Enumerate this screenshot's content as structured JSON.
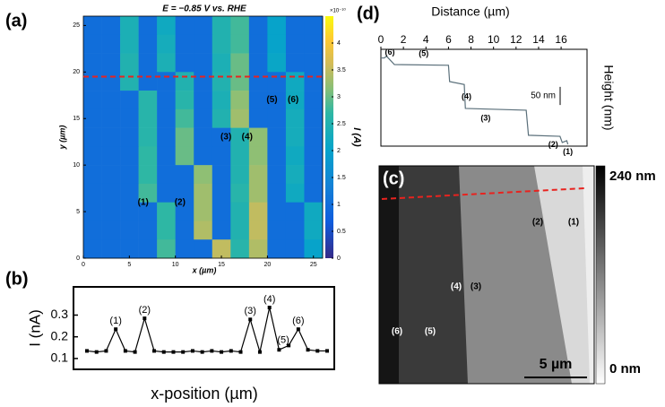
{
  "chart_data": [
    {
      "type": "heatmap",
      "panel": "(a)",
      "title": "E = −0.85 V vs. RHE",
      "xlabel": "x (µm)",
      "ylabel": "y (µm)",
      "colorbar_label": "I (A)",
      "colorbar_exponent": "×10⁻¹⁰",
      "xlim": [
        0,
        26
      ],
      "ylim": [
        0,
        26
      ],
      "xticks": [
        0,
        5,
        10,
        15,
        20,
        25
      ],
      "yticks": [
        0,
        5,
        10,
        15,
        20,
        25
      ],
      "clim": [
        0,
        4.5
      ],
      "cticks": [
        0,
        0.5,
        1,
        1.5,
        2,
        2.5,
        3,
        3.5,
        4
      ],
      "cut_line_y": 19.5,
      "matrix": [
        [
          1,
          1,
          2.4,
          1,
          2.2,
          1,
          1,
          2.5,
          2.8,
          1,
          2.0,
          1,
          1
        ],
        [
          1,
          1,
          2.4,
          1,
          2.3,
          1,
          1,
          2.5,
          2.8,
          1,
          2.0,
          1,
          1
        ],
        [
          1,
          1,
          2.5,
          1,
          2.4,
          1,
          1,
          2.4,
          3.0,
          1,
          2.1,
          1,
          1
        ],
        [
          1,
          1,
          2.5,
          1,
          1,
          2.5,
          1,
          2.5,
          3.0,
          1,
          1,
          2.2,
          1
        ],
        [
          1,
          1,
          1,
          2.6,
          1,
          2.6,
          1,
          2.4,
          3.2,
          1,
          1,
          2.2,
          1
        ],
        [
          1,
          1,
          1,
          2.6,
          1,
          2.8,
          1,
          2.5,
          3.3,
          1,
          1,
          2.3,
          1
        ],
        [
          1,
          1,
          1,
          2.6,
          1,
          3.0,
          1,
          1,
          2.5,
          3.2,
          1,
          2.3,
          1
        ],
        [
          1,
          1,
          1,
          2.7,
          1,
          3.0,
          1,
          1,
          2.5,
          3.2,
          1,
          2.2,
          1
        ],
        [
          1,
          1,
          1,
          2.7,
          1,
          1,
          3.2,
          1,
          2.5,
          3.3,
          1,
          2.3,
          1
        ],
        [
          1,
          1,
          1,
          2.8,
          1,
          1,
          3.3,
          1,
          2.6,
          3.3,
          1,
          2.2,
          1
        ],
        [
          1,
          1,
          1,
          1,
          2.7,
          1,
          3.3,
          1,
          2.5,
          3.5,
          1,
          1,
          2.2
        ],
        [
          1,
          1,
          1,
          1,
          2.7,
          1,
          3.4,
          1,
          2.5,
          3.5,
          1,
          1,
          2.2
        ],
        [
          1,
          1,
          1,
          1,
          2.8,
          1,
          1,
          3.5,
          2.6,
          3.4,
          1,
          1,
          2.0
        ]
      ],
      "annotations": [
        {
          "text": "(1)",
          "x": 6.5,
          "y": 6
        },
        {
          "text": "(2)",
          "x": 10.5,
          "y": 6
        },
        {
          "text": "(3)",
          "x": 15.5,
          "y": 13
        },
        {
          "text": "(4)",
          "x": 17.8,
          "y": 13
        },
        {
          "text": "(5)",
          "x": 20.5,
          "y": 17
        },
        {
          "text": "(6)",
          "x": 22.8,
          "y": 17
        }
      ]
    },
    {
      "type": "line",
      "panel": "(b)",
      "xlabel": "x-position (µm)",
      "ylabel": "I (nA)",
      "ylim": [
        0.05,
        0.43
      ],
      "yticks": [
        0.1,
        0.2,
        0.3
      ],
      "categories": [
        null,
        null,
        null,
        null,
        null,
        null,
        null,
        null,
        null,
        null,
        null,
        null,
        null,
        null,
        null,
        null,
        null,
        null,
        null,
        null,
        null,
        null,
        null,
        null,
        null,
        null
      ],
      "values": [
        0.135,
        0.13,
        0.135,
        0.235,
        0.135,
        0.13,
        0.285,
        0.135,
        0.13,
        0.13,
        0.13,
        0.135,
        0.13,
        0.135,
        0.13,
        0.135,
        0.13,
        0.28,
        0.13,
        0.335,
        0.14,
        0.16,
        0.235,
        0.14,
        0.135,
        0.135
      ],
      "point_labels": [
        null,
        null,
        null,
        "(1)",
        null,
        null,
        "(2)",
        null,
        null,
        null,
        null,
        null,
        null,
        null,
        null,
        null,
        null,
        "(3)",
        null,
        "(4)",
        null,
        "(5)",
        "(6)",
        null,
        null,
        null
      ]
    },
    {
      "type": "profile",
      "panel": "(d)",
      "xlabel": "Distance (µm)",
      "ylabel": "Height (nm)",
      "scale_bar": "50 nm",
      "scale_bar_nm": 50,
      "xlim": [
        0,
        18.3
      ],
      "ylim": [
        0,
        267
      ],
      "xticks": [
        0,
        2,
        4,
        6,
        8,
        10,
        12,
        14,
        16
      ],
      "x": [
        0,
        0.3,
        0.5,
        1.2,
        6.0,
        6.1,
        7.4,
        7.5,
        12.9,
        13.1,
        15.9,
        16.1,
        16.5,
        16.6
      ],
      "values": [
        243,
        243,
        248,
        225,
        223,
        178,
        170,
        104,
        99,
        30,
        27,
        10,
        15,
        5
      ],
      "step_labels": [
        "(6)",
        "(5)",
        "(4)",
        "(3)",
        "(2)",
        "(1)"
      ]
    }
  ],
  "image_c": {
    "panel": "(c)",
    "labels": [
      "(1)",
      "(2)",
      "(3)",
      "(4)",
      "(5)",
      "(6)"
    ],
    "scale_bar": "5 µm",
    "colorbar_max": "240 nm",
    "colorbar_min": "0 nm"
  }
}
